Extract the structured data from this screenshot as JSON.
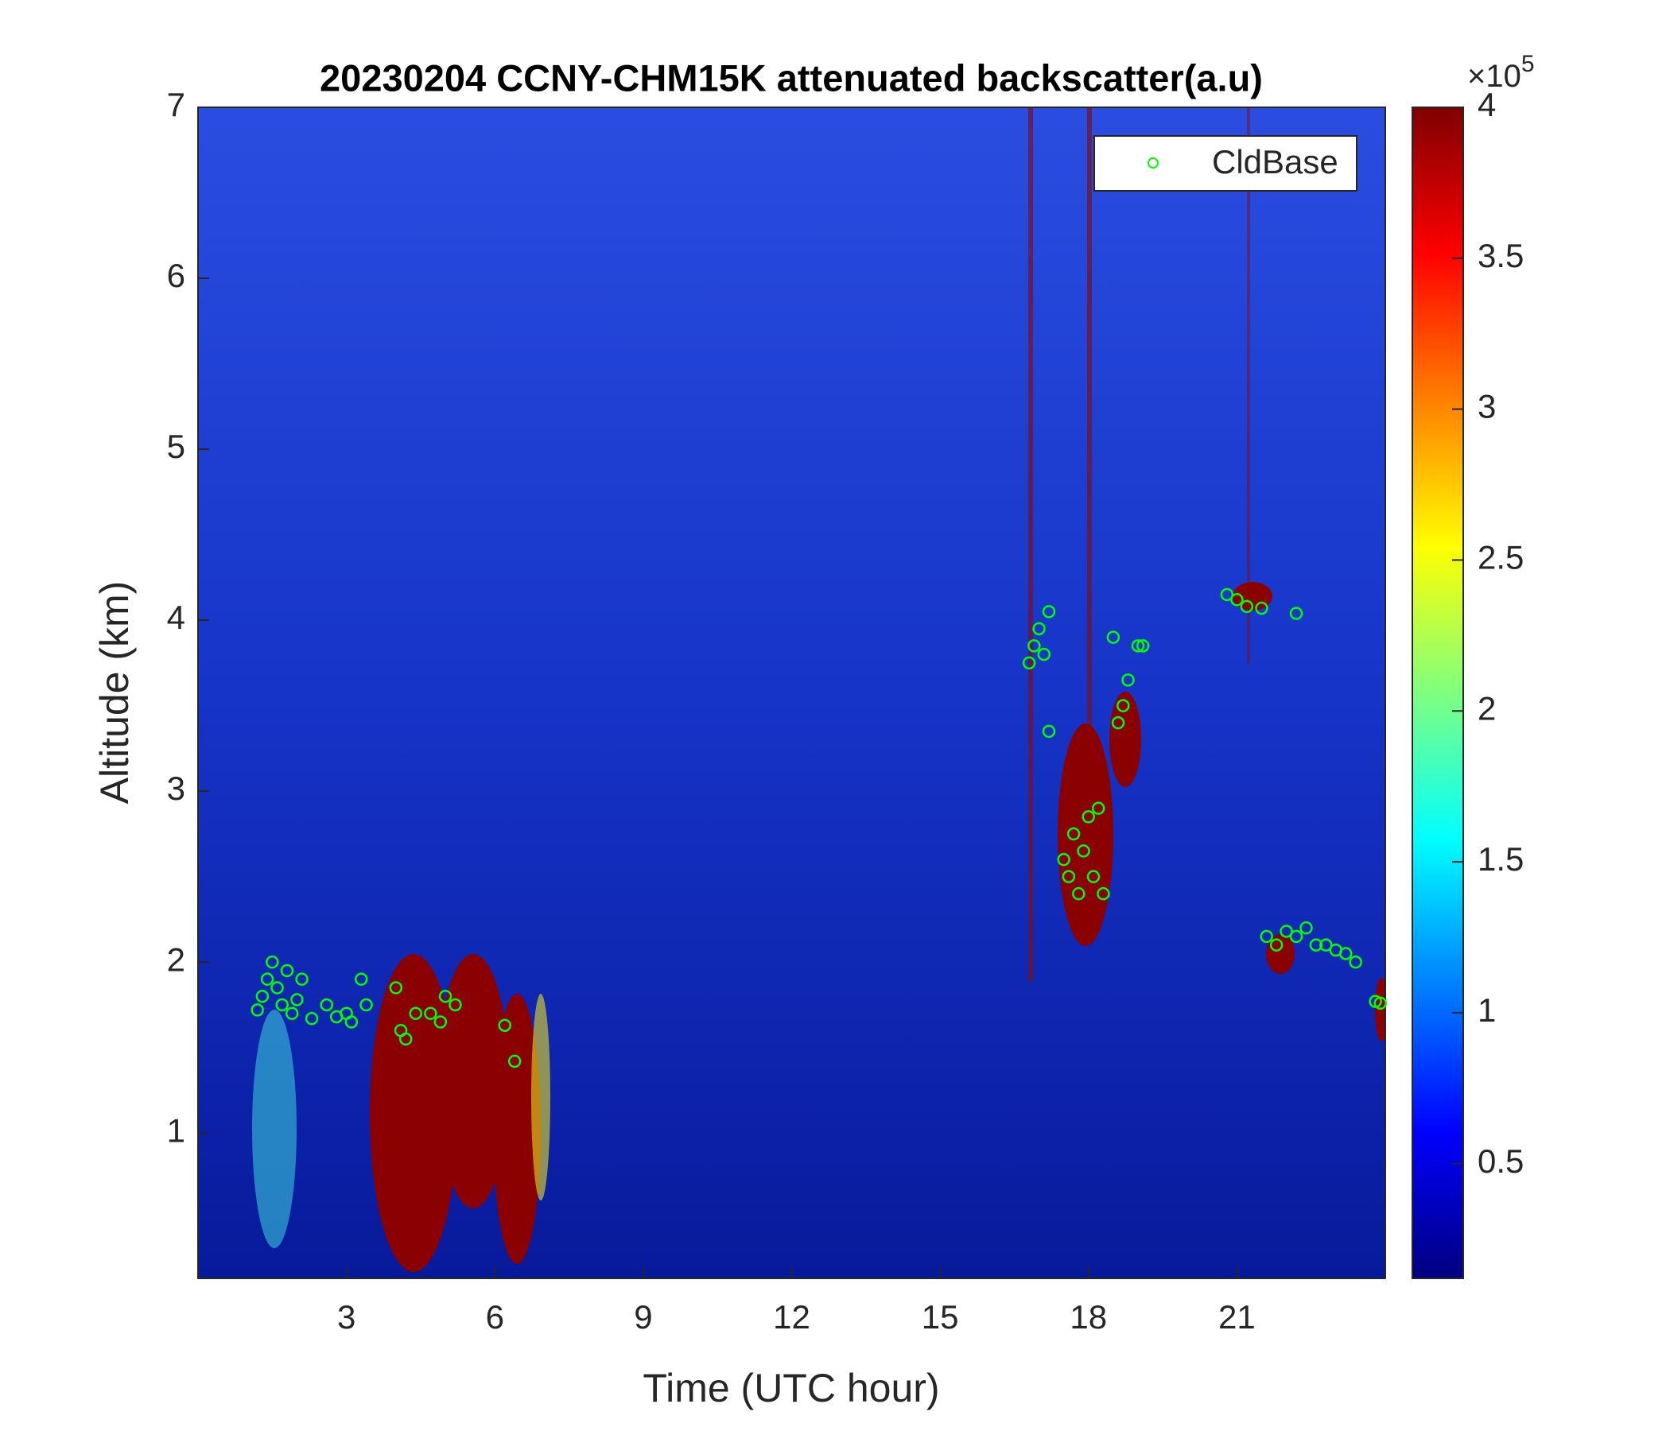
{
  "chart_data": {
    "type": "scatter",
    "title": "20230204 CCNY-CHM15K attenuated backscatter(a.u)",
    "x_label": "Time (UTC hour)",
    "y_label": "Altitude (km)",
    "xlim": [
      0,
      24
    ],
    "xticks": [
      3,
      6,
      9,
      12,
      15,
      18,
      21
    ],
    "ylim": [
      0.15,
      7
    ],
    "yticks": [
      1,
      2,
      3,
      4,
      5,
      6,
      7
    ],
    "colormap": "jet",
    "clim": [
      0.12,
      4
    ],
    "cticks": [
      0.5,
      1,
      1.5,
      2,
      2.5,
      3,
      3.5,
      4
    ],
    "colorbar_scale": {
      "base": "×10",
      "exponent": "5"
    },
    "legend": "upper right",
    "series": [
      {
        "name": "CldBase",
        "color": "#00ff00",
        "marker": "circle-open",
        "x": [
          1.2,
          1.3,
          1.4,
          1.5,
          1.6,
          1.7,
          1.8,
          1.9,
          2.0,
          2.1,
          2.3,
          2.6,
          2.8,
          3.0,
          3.1,
          3.3,
          3.4,
          4.0,
          4.1,
          4.2,
          4.4,
          4.7,
          4.9,
          5.0,
          5.2,
          6.2,
          6.4,
          16.8,
          16.9,
          17.0,
          17.1,
          17.2,
          17.2,
          17.5,
          17.6,
          17.7,
          17.8,
          17.9,
          18.0,
          18.1,
          18.2,
          18.3,
          18.5,
          18.6,
          18.7,
          18.8,
          19.0,
          19.1,
          20.8,
          21.0,
          21.2,
          21.5,
          22.2,
          21.6,
          21.8,
          22.0,
          22.2,
          22.4,
          22.6,
          22.8,
          23.0,
          23.2,
          23.4,
          23.8,
          23.9
        ],
        "values": [
          1.72,
          1.8,
          1.9,
          2.0,
          1.85,
          1.75,
          1.95,
          1.7,
          1.78,
          1.9,
          1.67,
          1.75,
          1.68,
          1.7,
          1.65,
          1.9,
          1.75,
          1.85,
          1.6,
          1.55,
          1.7,
          1.7,
          1.65,
          1.8,
          1.75,
          1.63,
          1.42,
          3.75,
          3.85,
          3.95,
          3.8,
          4.05,
          3.35,
          2.6,
          2.5,
          2.75,
          2.4,
          2.65,
          2.85,
          2.5,
          2.9,
          2.4,
          3.9,
          3.4,
          3.5,
          3.65,
          3.85,
          3.85,
          4.15,
          4.12,
          4.08,
          4.07,
          4.04,
          2.15,
          2.1,
          2.18,
          2.15,
          2.2,
          2.1,
          2.1,
          2.07,
          2.05,
          2.0,
          1.77,
          1.76
        ]
      }
    ]
  }
}
